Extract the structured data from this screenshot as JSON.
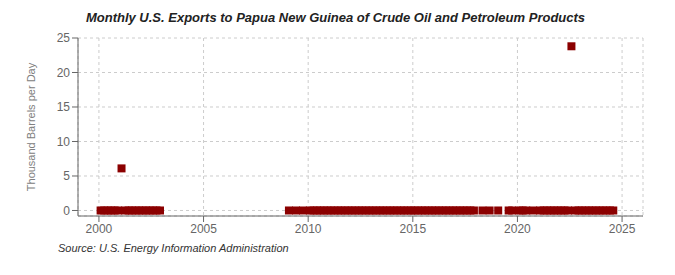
{
  "chart_data": {
    "type": "scatter",
    "title": "Monthly U.S. Exports to Papua New Guinea of Crude Oil and Petroleum Products",
    "ylabel": "Thousand Barrels per Day",
    "annotations": [
      "Source: U.S. Energy Information Administration"
    ],
    "xlim": [
      1999.0,
      2026.0
    ],
    "ylim": [
      -0.8,
      25
    ],
    "xticks": [
      2000,
      2005,
      2010,
      2015,
      2020,
      2025
    ],
    "yticks": [
      0,
      5,
      10,
      15,
      20,
      25
    ],
    "grid": true,
    "color": "#8b0000",
    "marker": "square",
    "x": [
      2000.08,
      2000.25,
      2000.42,
      2000.58,
      2000.75,
      2000.92,
      2001.08,
      2001.25,
      2001.42,
      2001.58,
      2001.75,
      2001.92,
      2002.08,
      2002.25,
      2002.42,
      2002.58,
      2002.75,
      2002.92,
      2009.08,
      2009.42,
      2009.75,
      2010.08,
      2010.25,
      2010.42,
      2010.58,
      2010.75,
      2010.92,
      2011.08,
      2011.25,
      2011.42,
      2011.58,
      2011.75,
      2011.92,
      2012.08,
      2012.25,
      2012.42,
      2012.58,
      2012.75,
      2012.92,
      2013.08,
      2013.25,
      2013.42,
      2013.58,
      2013.75,
      2013.92,
      2014.08,
      2014.25,
      2014.42,
      2014.58,
      2014.75,
      2014.92,
      2015.08,
      2015.25,
      2015.42,
      2015.58,
      2015.75,
      2015.92,
      2016.08,
      2016.25,
      2016.42,
      2016.58,
      2016.75,
      2016.92,
      2017.08,
      2017.25,
      2017.42,
      2017.58,
      2017.75,
      2017.92,
      2018.33,
      2018.67,
      2019.08,
      2019.58,
      2019.75,
      2020.08,
      2020.25,
      2020.42,
      2020.75,
      2021.08,
      2021.25,
      2021.42,
      2021.58,
      2021.75,
      2021.92,
      2022.08,
      2022.25,
      2022.42,
      2022.58,
      2022.75,
      2022.92,
      2023.08,
      2023.25,
      2023.42,
      2023.58,
      2023.75,
      2023.92,
      2024.08,
      2024.25,
      2024.42,
      2024.58
    ],
    "values": [
      0.0,
      0.0,
      0.0,
      0.0,
      0.0,
      0.0,
      6.1,
      0.0,
      0.0,
      0.0,
      0.0,
      0.0,
      0.0,
      0.0,
      0.0,
      0.0,
      0.0,
      0.0,
      0.0,
      0.0,
      0.0,
      0.0,
      0.0,
      0.0,
      0.0,
      0.0,
      0.0,
      0.0,
      0.0,
      0.0,
      0.0,
      0.0,
      0.0,
      0.0,
      0.0,
      0.0,
      0.0,
      0.0,
      0.0,
      0.0,
      0.0,
      0.0,
      0.0,
      0.0,
      0.0,
      0.0,
      0.0,
      0.0,
      0.0,
      0.0,
      0.0,
      0.0,
      0.0,
      0.0,
      0.0,
      0.0,
      0.0,
      0.0,
      0.0,
      0.0,
      0.0,
      0.0,
      0.0,
      0.0,
      0.0,
      0.0,
      0.0,
      0.0,
      0.0,
      0.0,
      0.0,
      0.0,
      0.0,
      0.0,
      0.0,
      0.0,
      0.0,
      0.0,
      0.0,
      0.0,
      0.0,
      0.0,
      0.0,
      0.0,
      0.0,
      0.0,
      0.0,
      23.8,
      0.0,
      0.0,
      0.0,
      0.0,
      0.0,
      0.0,
      0.0,
      0.0,
      0.0,
      0.0,
      0.0,
      0.0
    ]
  }
}
